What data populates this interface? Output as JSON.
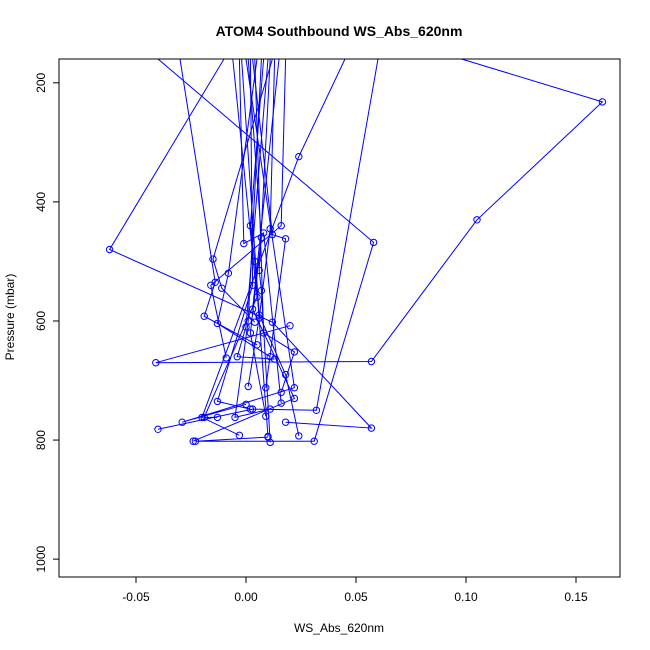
{
  "chart_data": {
    "type": "line",
    "title": "ATOM4 Southbound WS_Abs_620nm",
    "xlabel": "WS_Abs_620nm",
    "ylabel": "Pressure (mbar)",
    "xlim": [
      -0.085,
      0.17
    ],
    "ylim": [
      1030,
      160
    ],
    "y_inverted": true,
    "grid": false,
    "line_color": "#0000ff",
    "marker": "open-circle",
    "x_ticks": [
      {
        "value": -0.05,
        "label": "-0.05"
      },
      {
        "value": 0.0,
        "label": "0.00"
      },
      {
        "value": 0.05,
        "label": "0.05"
      },
      {
        "value": 0.1,
        "label": "0.10"
      },
      {
        "value": 0.15,
        "label": "0.15"
      }
    ],
    "y_ticks": [
      {
        "value": 200,
        "label": "200"
      },
      {
        "value": 400,
        "label": "400"
      },
      {
        "value": 600,
        "label": "600"
      },
      {
        "value": 800,
        "label": "800"
      },
      {
        "value": 1000,
        "label": "1000"
      }
    ],
    "series": [
      {
        "points": [
          [
            0.098,
            160
          ],
          [
            0.162,
            232
          ],
          [
            0.105,
            430
          ],
          [
            0.057,
            668
          ],
          [
            -0.041,
            670
          ],
          [
            0.02,
            608
          ]
        ]
      },
      {
        "points": [
          [
            0.045,
            160
          ],
          [
            0.024,
            324
          ],
          [
            -0.02,
            762
          ],
          [
            -0.003,
            792
          ]
        ]
      },
      {
        "points": [
          [
            -0.04,
            160
          ],
          [
            0.058,
            468
          ],
          [
            0.031,
            802
          ],
          [
            -0.023,
            802
          ],
          [
            0.01,
            795
          ]
        ]
      },
      {
        "points": [
          [
            -0.01,
            160
          ],
          [
            -0.062,
            480
          ],
          [
            0.012,
            602
          ],
          [
            0.057,
            780
          ],
          [
            0.018,
            770
          ]
        ]
      },
      {
        "points": [
          [
            0.06,
            160
          ],
          [
            0.032,
            750
          ],
          [
            0.003,
            748
          ],
          [
            -0.04,
            782
          ]
        ]
      },
      {
        "points": [
          [
            0.012,
            160
          ],
          [
            -0.015,
            496
          ],
          [
            -0.011,
            545
          ],
          [
            0.004,
            602
          ]
        ]
      },
      {
        "points": [
          [
            -0.03,
            160
          ],
          [
            -0.014,
            535
          ],
          [
            -0.019,
            592
          ],
          [
            0.005,
            640
          ]
        ]
      },
      {
        "points": [
          [
            0.005,
            160
          ],
          [
            -0.008,
            520
          ],
          [
            -0.013,
            604
          ],
          [
            0.011,
            660
          ]
        ]
      },
      {
        "points": [
          [
            0.018,
            160
          ],
          [
            0.016,
            440
          ],
          [
            -0.016,
            540
          ],
          [
            -0.009,
            662
          ]
        ]
      },
      {
        "points": [
          [
            0.0,
            160
          ],
          [
            0.022,
            712
          ],
          [
            -0.029,
            770
          ],
          [
            0.0,
            740
          ]
        ]
      },
      {
        "points": [
          [
            0.003,
            160
          ],
          [
            0.012,
            455
          ],
          [
            0.018,
            462
          ],
          [
            0.009,
            712
          ]
        ]
      },
      {
        "points": [
          [
            -0.003,
            160
          ],
          [
            -0.001,
            470
          ],
          [
            0.008,
            452
          ],
          [
            0.016,
            738
          ]
        ]
      },
      {
        "points": [
          [
            0.008,
            160
          ],
          [
            0.002,
            440
          ],
          [
            0.004,
            500
          ],
          [
            0.01,
            794
          ]
        ]
      },
      {
        "points": [
          [
            0.011,
            160
          ],
          [
            0.006,
            515
          ],
          [
            0.007,
            549
          ],
          [
            0.011,
            804
          ]
        ]
      },
      {
        "points": [
          [
            -0.006,
            160
          ],
          [
            0.005,
            560
          ],
          [
            -0.019,
            762
          ],
          [
            -0.013,
            762
          ]
        ]
      },
      {
        "points": [
          [
            0.015,
            160
          ],
          [
            0.003,
            580
          ],
          [
            0.022,
            730
          ],
          [
            -0.024,
            802
          ]
        ]
      },
      {
        "points": [
          [
            0.002,
            160
          ],
          [
            0.003,
            540
          ],
          [
            -0.013,
            735
          ],
          [
            0.002,
            748
          ]
        ]
      },
      {
        "points": [
          [
            0.007,
            160
          ],
          [
            0.001,
            600
          ],
          [
            -0.005,
            762
          ],
          [
            0.011,
            748
          ]
        ]
      },
      {
        "points": [
          [
            -0.002,
            160
          ],
          [
            0.006,
            590
          ],
          [
            0.018,
            690
          ],
          [
            0.024,
            793
          ]
        ]
      },
      {
        "points": [
          [
            0.004,
            160
          ],
          [
            0.008,
            620
          ],
          [
            0.022,
            652
          ],
          [
            0.016,
            720
          ]
        ]
      },
      {
        "points": [
          [
            0.01,
            160
          ],
          [
            0.0,
            610
          ],
          [
            -0.004,
            660
          ],
          [
            0.013,
            664
          ]
        ]
      },
      {
        "points": [
          [
            0.013,
            160
          ],
          [
            0.011,
            445
          ],
          [
            0.006,
            595
          ],
          [
            0.001,
            710
          ]
        ]
      },
      {
        "points": [
          [
            0.001,
            160
          ],
          [
            0.007,
            460
          ],
          [
            0.002,
            620
          ],
          [
            0.009,
            760
          ]
        ]
      }
    ]
  }
}
